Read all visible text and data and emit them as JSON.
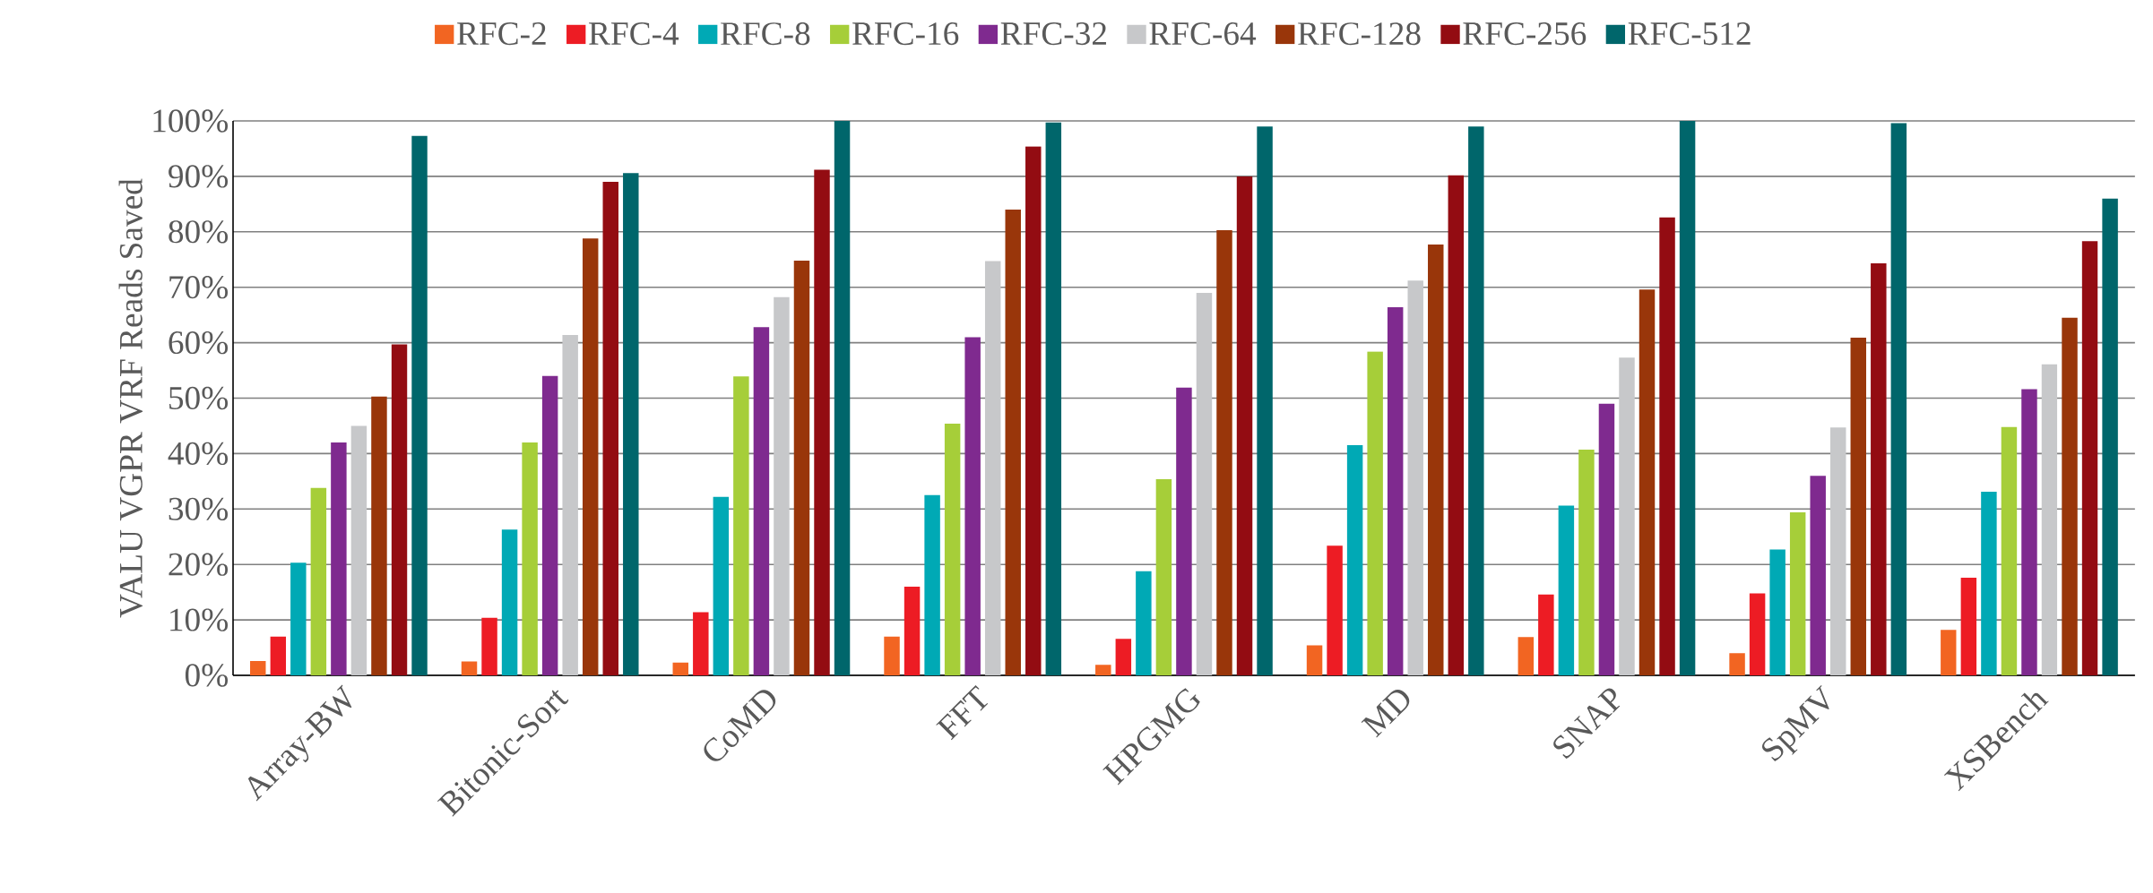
{
  "chart_data": {
    "type": "bar",
    "ylabel": "VALU VGPR VRF Reads Saved",
    "categories": [
      "Array-BW",
      "Bitonic-Sort",
      "CoMD",
      "FFT",
      "HPGMG",
      "MD",
      "SNAP",
      "SpMV",
      "XSBench"
    ],
    "series": [
      {
        "name": "RFC-2",
        "color": "#f26522",
        "values": [
          2.6,
          2.5,
          2.3,
          7,
          1.9,
          5.4,
          6.9,
          4,
          8.2
        ]
      },
      {
        "name": "RFC-4",
        "color": "#ed1c24",
        "values": [
          7,
          10.4,
          11.4,
          16,
          6.6,
          23.4,
          14.6,
          14.8,
          17.6
        ]
      },
      {
        "name": "RFC-8",
        "color": "#00a9b5",
        "values": [
          20.3,
          26.3,
          32.2,
          32.5,
          18.8,
          41.5,
          30.6,
          22.7,
          33.1
        ]
      },
      {
        "name": "RFC-16",
        "color": "#a6ce39",
        "values": [
          33.8,
          42,
          53.9,
          45.4,
          35.4,
          58.4,
          40.7,
          29.4,
          44.8
        ]
      },
      {
        "name": "RFC-32",
        "color": "#7f2a8f",
        "values": [
          42,
          54,
          62.8,
          61,
          51.9,
          66.4,
          49,
          36,
          51.6
        ]
      },
      {
        "name": "RFC-64",
        "color": "#c7c8ca",
        "values": [
          45,
          61.4,
          68.2,
          74.7,
          69,
          71.2,
          57.3,
          44.7,
          56.1
        ]
      },
      {
        "name": "RFC-128",
        "color": "#99360a",
        "values": [
          50.3,
          78.8,
          74.8,
          84,
          80.3,
          77.7,
          69.6,
          60.9,
          64.5
        ]
      },
      {
        "name": "RFC-256",
        "color": "#930c12",
        "values": [
          59.7,
          89,
          91.2,
          95.4,
          90,
          90.2,
          82.6,
          74.3,
          78.3
        ]
      },
      {
        "name": "RFC-512",
        "color": "#00666b",
        "values": [
          97.3,
          90.6,
          100,
          99.7,
          99,
          99,
          100,
          99.6,
          86
        ]
      }
    ],
    "ylim": [
      0,
      100
    ],
    "yticks": [
      {
        "value": 0,
        "label": "0%"
      },
      {
        "value": 10,
        "label": "10%"
      },
      {
        "value": 20,
        "label": "20%"
      },
      {
        "value": 30,
        "label": "30%"
      },
      {
        "value": 40,
        "label": "40%"
      },
      {
        "value": 50,
        "label": "50%"
      },
      {
        "value": 60,
        "label": "60%"
      },
      {
        "value": 70,
        "label": "70%"
      },
      {
        "value": 80,
        "label": "80%"
      },
      {
        "value": 90,
        "label": "90%"
      },
      {
        "value": 100,
        "label": "100%"
      }
    ],
    "grid": "y",
    "legend": "top"
  }
}
